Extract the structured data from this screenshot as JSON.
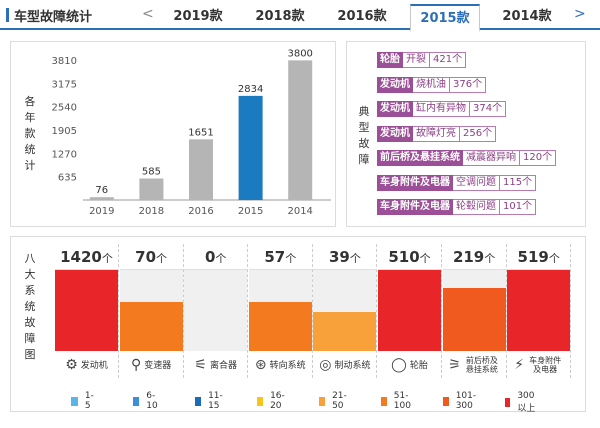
{
  "header": {
    "title": "车型故障统计",
    "prev_arrow": "<",
    "next_arrow": ">",
    "tabs": [
      {
        "label": "2019款",
        "active": false
      },
      {
        "label": "2018款",
        "active": false
      },
      {
        "label": "2016款",
        "active": false
      },
      {
        "label": "2015款",
        "active": true
      },
      {
        "label": "2014款",
        "active": false
      }
    ]
  },
  "bar_panel": {
    "axis_title": "各年款统计"
  },
  "chart_data": {
    "type": "bar",
    "categories": [
      "2019",
      "2018",
      "2016",
      "2015",
      "2014"
    ],
    "values": [
      76,
      585,
      1651,
      2834,
      3800
    ],
    "yticks": [
      635,
      1270,
      1905,
      2540,
      3175,
      3810
    ],
    "ylim": [
      0,
      3810
    ],
    "highlight_index": 3,
    "colors": {
      "normal": "#b5b5b5",
      "highlight": "#1a7bc0"
    }
  },
  "issues": {
    "title": "典型故障",
    "items": [
      {
        "system": "轮胎",
        "problem": "开裂",
        "count": "421个"
      },
      {
        "system": "发动机",
        "problem": "烧机油",
        "count": "376个"
      },
      {
        "system": "发动机",
        "problem": "缸内有异物",
        "count": "374个"
      },
      {
        "system": "发动机",
        "problem": "故障灯亮",
        "count": "256个"
      },
      {
        "system": "前后桥及悬挂系统",
        "problem": "减震器异响",
        "count": "120个"
      },
      {
        "system": "车身附件及电器",
        "problem": "空调问题",
        "count": "115个"
      },
      {
        "system": "车身附件及电器",
        "problem": "轮毂问题",
        "count": "101个"
      }
    ]
  },
  "systems": {
    "title": "八大系统故障图",
    "unit": "个",
    "items": [
      {
        "value": "1420",
        "name": "发动机",
        "icon": "engine-icon",
        "glyph": "⚙",
        "level": 1.0,
        "color": "#e8262a"
      },
      {
        "value": "70",
        "name": "变速器",
        "icon": "gearbox-icon",
        "glyph": "⚲",
        "level": 0.6,
        "color": "#f47a20"
      },
      {
        "value": "0",
        "name": "离合器",
        "icon": "clutch-icon",
        "glyph": "⚟",
        "level": 0.0,
        "color": "#f0f0f0"
      },
      {
        "value": "57",
        "name": "转向系统",
        "icon": "steering-icon",
        "glyph": "⊛",
        "level": 0.6,
        "color": "#f47a20"
      },
      {
        "value": "39",
        "name": "制动系统",
        "icon": "brake-icon",
        "glyph": "◎",
        "level": 0.48,
        "color": "#f8a03a"
      },
      {
        "value": "510",
        "name": "轮胎",
        "icon": "tire-icon",
        "glyph": "◯",
        "level": 1.0,
        "color": "#e8262a"
      },
      {
        "value": "219",
        "name": "前后桥及悬挂系统",
        "icon": "suspension-icon",
        "glyph": "⚞",
        "level": 0.78,
        "color": "#f05a1e"
      },
      {
        "value": "519",
        "name": "车身附件及电器",
        "icon": "body-electric-icon",
        "glyph": "⚡",
        "level": 1.0,
        "color": "#e8262a"
      }
    ]
  },
  "legend": [
    {
      "label": "1-5",
      "color": "#5ab4e8"
    },
    {
      "label": "6-10",
      "color": "#3a8fdc"
    },
    {
      "label": "11-15",
      "color": "#1a6cb8"
    },
    {
      "label": "16-20",
      "color": "#f5c518"
    },
    {
      "label": "21-50",
      "color": "#f8a03a"
    },
    {
      "label": "51-100",
      "color": "#f47a20"
    },
    {
      "label": "101-300",
      "color": "#f05a1e"
    },
    {
      "label": "300以上",
      "color": "#e8262a"
    }
  ]
}
